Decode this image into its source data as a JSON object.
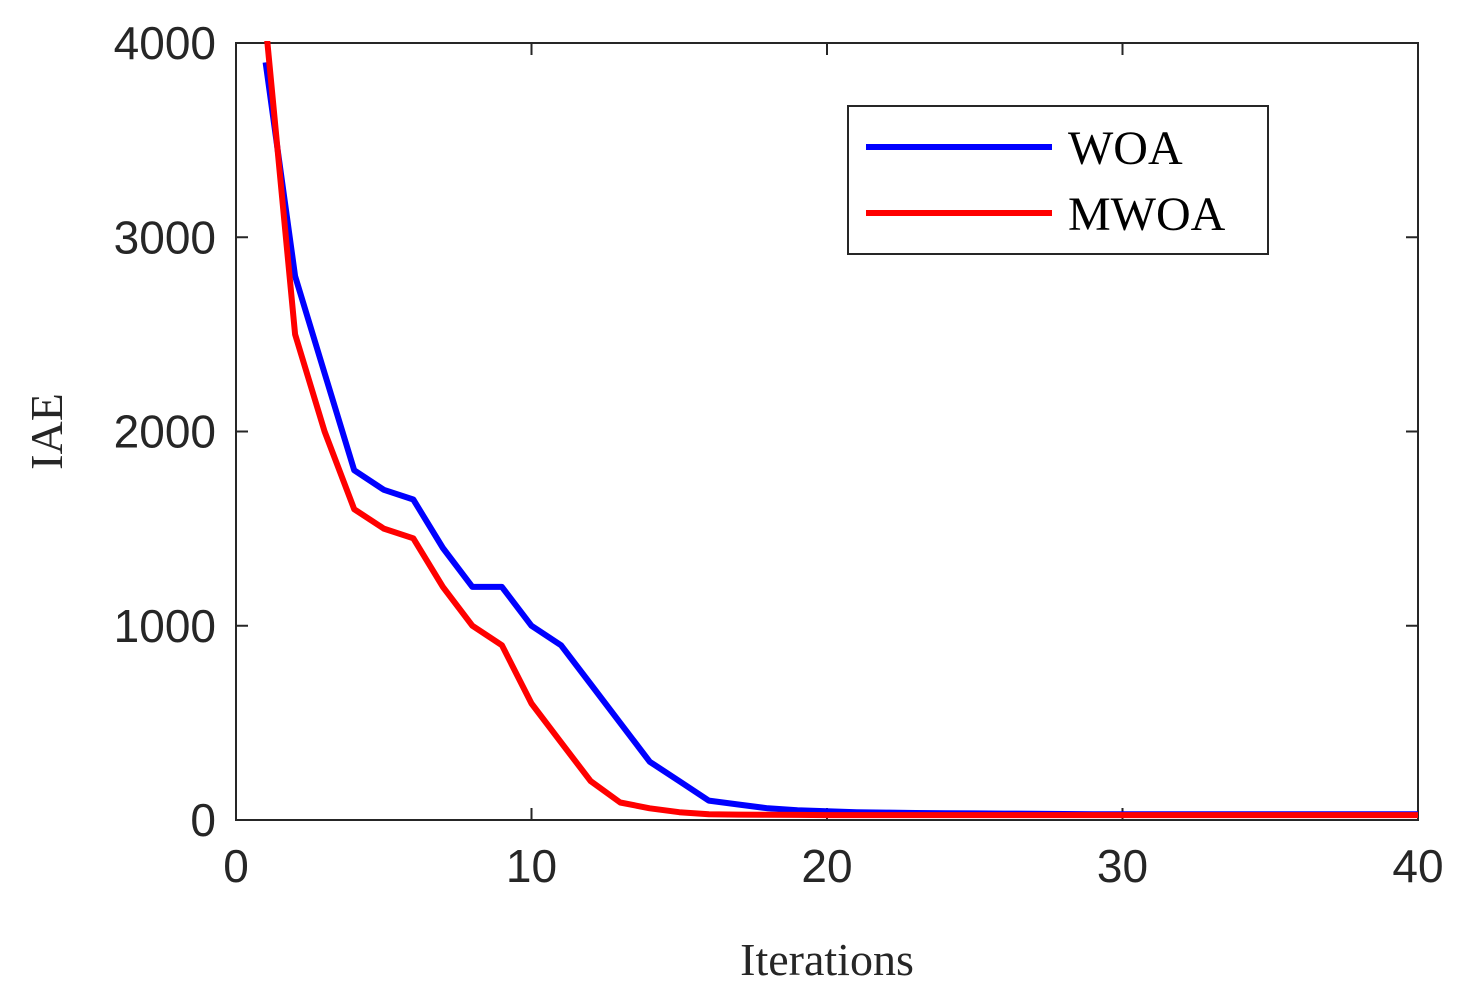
{
  "chart_data": {
    "type": "line",
    "title": "",
    "xlabel": "Iterations",
    "ylabel": "IAE",
    "xlim": [
      0,
      40
    ],
    "ylim": [
      0,
      4000
    ],
    "xticks": [
      0,
      10,
      20,
      30,
      40
    ],
    "yticks": [
      0,
      1000,
      2000,
      3000,
      4000
    ],
    "xtick_labels": [
      "0",
      "10",
      "20",
      "30",
      "40"
    ],
    "ytick_labels": [
      "0",
      "1000",
      "2000",
      "3000",
      "4000"
    ],
    "grid": false,
    "legend_position": "top-right",
    "series": [
      {
        "name": "WOA",
        "color": "#0000ff",
        "x": [
          1,
          2,
          3,
          4,
          5,
          6,
          7,
          8,
          9,
          10,
          11,
          12,
          13,
          14,
          15,
          16,
          17,
          18,
          19,
          20,
          21,
          22,
          23,
          24,
          25,
          26,
          27,
          28,
          29,
          30,
          31,
          32,
          33,
          34,
          35,
          36,
          37,
          38,
          39,
          40
        ],
        "values": [
          3900,
          2800,
          2300,
          1800,
          1700,
          1650,
          1400,
          1200,
          1200,
          1000,
          900,
          700,
          500,
          300,
          200,
          100,
          80,
          60,
          50,
          45,
          40,
          38,
          36,
          35,
          34,
          33,
          32,
          31,
          30,
          30,
          30,
          30,
          30,
          30,
          30,
          30,
          30,
          30,
          30,
          30
        ]
      },
      {
        "name": "MWOA",
        "color": "#ff0000",
        "x": [
          1,
          2,
          3,
          4,
          5,
          6,
          7,
          8,
          9,
          10,
          11,
          12,
          13,
          14,
          15,
          16,
          17,
          18,
          19,
          20,
          21,
          22,
          23,
          24,
          25,
          26,
          27,
          28,
          29,
          30,
          31,
          32,
          33,
          34,
          35,
          36,
          37,
          38,
          39,
          40
        ],
        "values": [
          4100,
          2500,
          2000,
          1600,
          1500,
          1450,
          1200,
          1000,
          900,
          600,
          400,
          200,
          90,
          60,
          40,
          30,
          28,
          27,
          26,
          25,
          25,
          25,
          25,
          25,
          25,
          25,
          25,
          25,
          25,
          25,
          25,
          25,
          25,
          25,
          25,
          25,
          25,
          25,
          25,
          25
        ]
      }
    ]
  }
}
